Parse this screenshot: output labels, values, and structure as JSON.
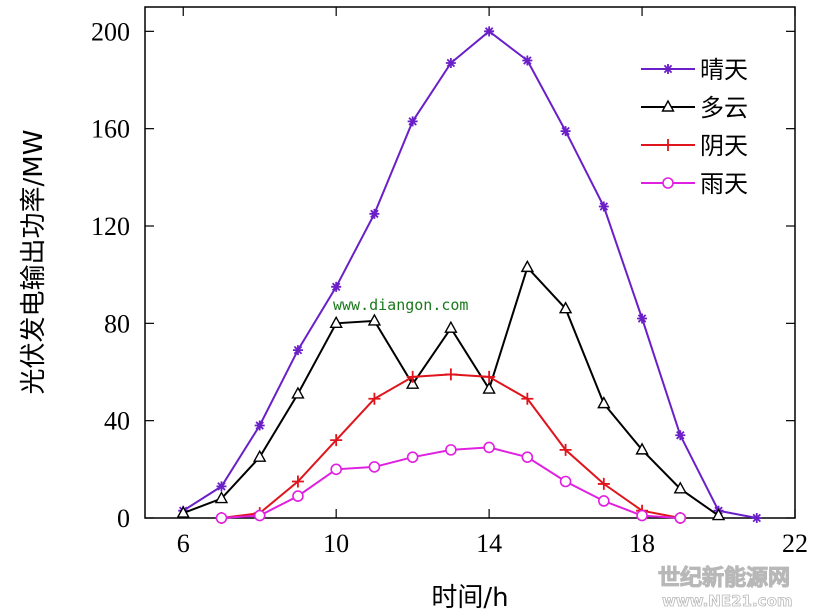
{
  "chart_data": {
    "type": "line",
    "xlabel": "时间/h",
    "ylabel": "光伏发电输出功率/MW",
    "xlim": [
      5,
      22
    ],
    "ylim": [
      0,
      210
    ],
    "xticks": [
      6,
      10,
      14,
      18,
      22
    ],
    "yticks": [
      0,
      40,
      80,
      120,
      160,
      200
    ],
    "xtick_labels": [
      "6",
      "10",
      "14",
      "18",
      "22"
    ],
    "ytick_labels": [
      "0",
      "40",
      "80",
      "120",
      "160",
      "200"
    ],
    "grid": false,
    "legend_position": "top-right",
    "series": [
      {
        "name": "晴天",
        "color": "#6a1fc8",
        "marker": "star",
        "x": [
          6,
          7,
          8,
          9,
          10,
          11,
          12,
          13,
          14,
          15,
          16,
          17,
          18,
          19,
          20,
          21
        ],
        "y": [
          3,
          13,
          38,
          69,
          95,
          125,
          163,
          187,
          200,
          188,
          159,
          128,
          82,
          34,
          3,
          0
        ]
      },
      {
        "name": "多云",
        "color": "#000000",
        "marker": "triangle",
        "x": [
          6,
          7,
          8,
          9,
          10,
          11,
          12,
          13,
          14,
          15,
          16,
          17,
          18,
          19,
          20
        ],
        "y": [
          2,
          8,
          25,
          51,
          80,
          81,
          55,
          78,
          53,
          103,
          86,
          47,
          28,
          12,
          1
        ]
      },
      {
        "name": "阴天",
        "color": "#e0141c",
        "marker": "plus",
        "x": [
          7,
          8,
          9,
          10,
          11,
          12,
          13,
          14,
          15,
          16,
          17,
          18,
          19
        ],
        "y": [
          0,
          2,
          15,
          32,
          49,
          58,
          59,
          58,
          49,
          28,
          14,
          3,
          0
        ]
      },
      {
        "name": "雨天",
        "color": "#e020e0",
        "marker": "circle",
        "x": [
          7,
          8,
          9,
          10,
          11,
          12,
          13,
          14,
          15,
          16,
          17,
          18,
          19
        ],
        "y": [
          0,
          1,
          9,
          20,
          21,
          25,
          28,
          29,
          25,
          15,
          7,
          1,
          0
        ]
      }
    ],
    "annotation": "www.diangon.com"
  },
  "watermark": {
    "line1": "世纪新能源网",
    "line2": "www.NE21.com"
  }
}
